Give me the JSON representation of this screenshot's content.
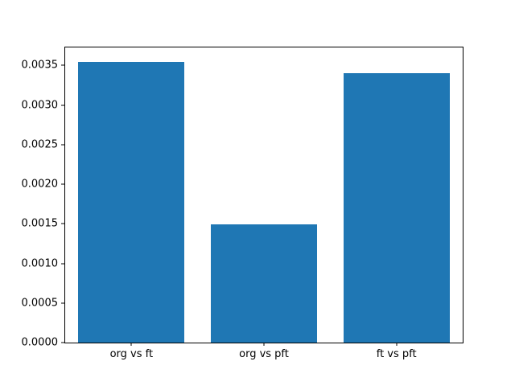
{
  "chart_data": {
    "type": "bar",
    "title": "",
    "xlabel": "",
    "ylabel": "",
    "categories": [
      "org vs ft",
      "org vs pft",
      "ft vs pft"
    ],
    "values": [
      0.00355,
      0.00149,
      0.0034
    ],
    "ylim": [
      0,
      0.003728
    ],
    "yticks": [
      0,
      0.0005,
      0.001,
      0.0015,
      0.002,
      0.0025,
      0.003,
      0.0035
    ],
    "ytick_labels": [
      "0.0000",
      "0.0005",
      "0.0010",
      "0.0015",
      "0.0020",
      "0.0025",
      "0.0030",
      "0.0035"
    ],
    "bar_width_fraction": 0.8,
    "bar_color": "#1f77b4",
    "axes_color": "#000000",
    "background_color": "#ffffff",
    "grid": false,
    "legend": false
  }
}
